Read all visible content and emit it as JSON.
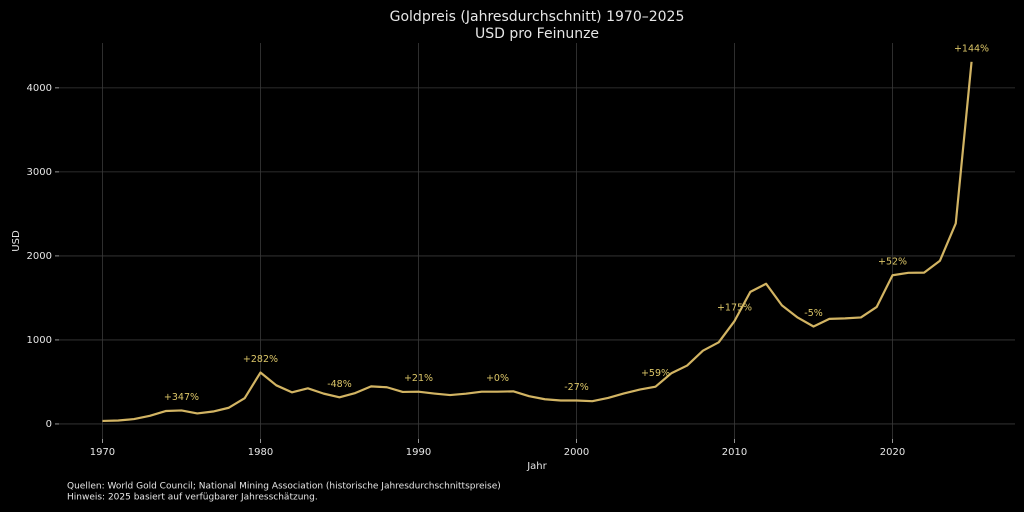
{
  "chart_data": {
    "type": "line",
    "title": "Goldpreis (Jahresdurchschnitt) 1970–2025",
    "subtitle": "USD pro Feinunze",
    "x_label": "Jahr",
    "y_label": "USD",
    "x": [
      1970,
      1971,
      1972,
      1973,
      1974,
      1975,
      1976,
      1977,
      1978,
      1979,
      1980,
      1981,
      1982,
      1983,
      1984,
      1985,
      1986,
      1987,
      1988,
      1989,
      1990,
      1991,
      1992,
      1993,
      1994,
      1995,
      1996,
      1997,
      1998,
      1999,
      2000,
      2001,
      2002,
      2003,
      2004,
      2005,
      2006,
      2007,
      2008,
      2009,
      2010,
      2011,
      2012,
      2013,
      2014,
      2015,
      2016,
      2017,
      2018,
      2019,
      2020,
      2021,
      2022,
      2023,
      2024,
      2025
    ],
    "values": [
      36,
      41,
      58,
      97,
      154,
      161,
      125,
      148,
      193,
      307,
      612,
      460,
      376,
      424,
      361,
      317,
      368,
      447,
      437,
      381,
      384,
      362,
      344,
      360,
      384,
      384,
      388,
      331,
      294,
      279,
      279,
      271,
      310,
      363,
      409,
      444,
      603,
      695,
      872,
      972,
      1225,
      1572,
      1669,
      1411,
      1266,
      1160,
      1251,
      1257,
      1268,
      1393,
      1770,
      1799,
      1801,
      1943,
      2386,
      4310
    ],
    "color": "#d2b463",
    "annotations": [
      {
        "x": 1975,
        "text": "+347%"
      },
      {
        "x": 1980,
        "text": "+282%"
      },
      {
        "x": 1985,
        "text": "-48%"
      },
      {
        "x": 1990,
        "text": "+21%"
      },
      {
        "x": 1995,
        "text": "+0%"
      },
      {
        "x": 2000,
        "text": "-27%"
      },
      {
        "x": 2005,
        "text": "+59%"
      },
      {
        "x": 2010,
        "text": "+175%"
      },
      {
        "x": 2015,
        "text": "-5%"
      },
      {
        "x": 2020,
        "text": "+52%"
      },
      {
        "x": 2025,
        "text": "+144%"
      }
    ],
    "xlim": [
      1967.25,
      2027.75
    ],
    "xticks": [
      1970,
      1980,
      1990,
      2000,
      2010,
      2020
    ],
    "ylim": [
      -179,
      4534
    ],
    "yticks": [
      0,
      1000,
      2000,
      3000,
      4000
    ],
    "grid": true,
    "notes": [
      "Quellen: World Gold Council; National Mining Association (historische Jahresdurchschnittspreise)",
      "Hinweis: 2025 basiert auf verfügbarer Jahresschätzung."
    ]
  }
}
